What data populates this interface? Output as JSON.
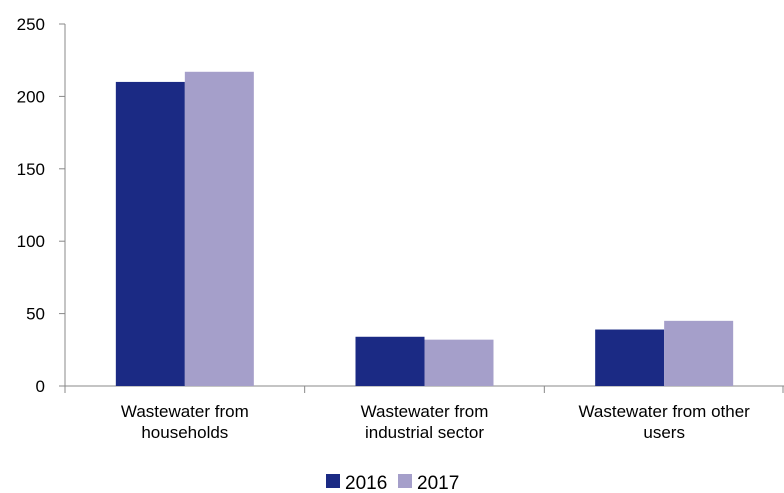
{
  "chart_data": {
    "type": "bar",
    "title": "",
    "xlabel": "",
    "ylabel": "",
    "ylim": [
      0,
      250
    ],
    "yticks": [
      0,
      50,
      100,
      150,
      200,
      250
    ],
    "grid": false,
    "legend_position": "bottom",
    "categories": [
      [
        "Wastewater from",
        "households"
      ],
      [
        "Wastewater from",
        "industrial sector"
      ],
      [
        "Wastewater from other",
        "users"
      ]
    ],
    "series": [
      {
        "name": "2016",
        "color": "#1b2a84",
        "values": [
          210,
          34,
          39
        ]
      },
      {
        "name": "2017",
        "color": "#a59fca",
        "values": [
          217,
          32,
          45
        ]
      }
    ]
  }
}
